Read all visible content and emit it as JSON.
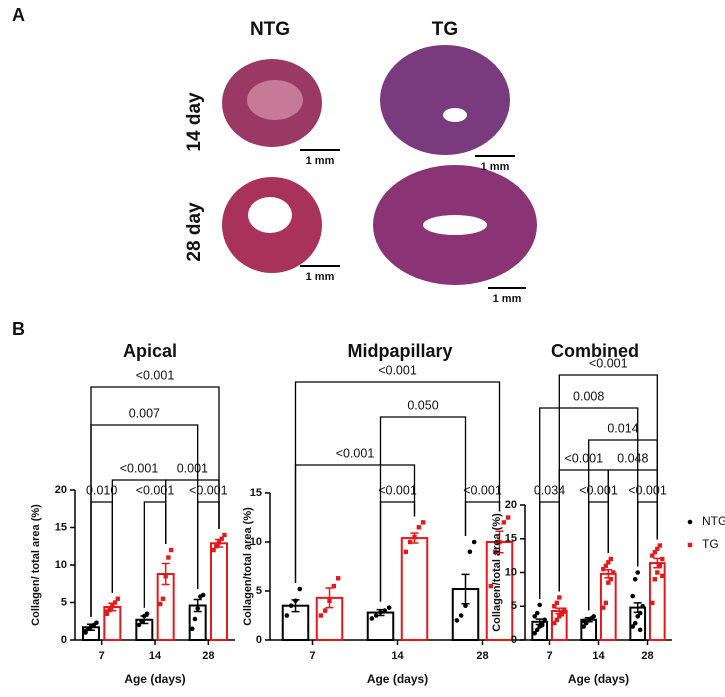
{
  "panel_labels": [
    "A",
    "B"
  ],
  "histology": {
    "columns": [
      "NTG",
      "TG"
    ],
    "rows": [
      "14 day",
      "28 day"
    ],
    "scale_bar": "1 mm"
  },
  "chart_data": [
    {
      "type": "bar",
      "title": "Apical",
      "xlabel": "Age (days)",
      "ylabel": "Collagen/ total area (%)",
      "categories": [
        "7",
        "14",
        "28"
      ],
      "ylim": [
        0,
        20
      ],
      "yticks": [
        0,
        5,
        10,
        15,
        20
      ],
      "series": [
        {
          "name": "NTG",
          "color": "#000000",
          "values": [
            1.7,
            2.7,
            4.6
          ],
          "errors": [
            0.4,
            0.5,
            0.8
          ],
          "points": [
            [
              1.0,
              1.5,
              1.8,
              2.0,
              2.3,
              1.2
            ],
            [
              2.0,
              2.5,
              3.2,
              3.5
            ],
            [
              1.5,
              2.8,
              4.2,
              5.8,
              6.0
            ]
          ]
        },
        {
          "name": "TG",
          "color": "#e31a1c",
          "values": [
            4.4,
            8.8,
            12.9
          ],
          "errors": [
            0.5,
            1.4,
            0.5
          ],
          "points": [
            [
              3.5,
              4.0,
              4.5,
              5.0,
              5.5,
              3.8
            ],
            [
              4.8,
              5.5,
              8.5,
              11.0,
              12.0
            ],
            [
              12.0,
              12.5,
              13.0,
              13.5,
              14.0
            ]
          ]
        }
      ],
      "comparisons": [
        "<0.001",
        "0.007",
        "<0.001",
        "0.001",
        "0.010",
        "<0.001",
        "<0.001"
      ]
    },
    {
      "type": "bar",
      "title": "Midpapillary",
      "xlabel": "Age (days)",
      "ylabel": "Collagen/total area (%)",
      "categories": [
        "7",
        "14",
        "28"
      ],
      "ylim": [
        0,
        15
      ],
      "yticks": [
        0,
        5,
        10,
        15
      ],
      "series": [
        {
          "name": "NTG",
          "color": "#000000",
          "values": [
            3.5,
            2.8,
            5.2
          ],
          "errors": [
            0.6,
            0.3,
            1.5
          ],
          "points": [
            [
              2.5,
              3.5,
              4.0,
              5.2
            ],
            [
              2.2,
              2.5,
              2.8,
              3.0,
              3.3
            ],
            [
              2.0,
              2.5,
              3.5,
              9.0,
              10.0
            ]
          ]
        },
        {
          "name": "TG",
          "color": "#e31a1c",
          "values": [
            4.3,
            10.4,
            10.0
          ],
          "errors": [
            1.0,
            0.5,
            1.1
          ],
          "points": [
            [
              2.5,
              3.0,
              4.0,
              5.5,
              6.3
            ],
            [
              9.0,
              10.0,
              10.5,
              11.5,
              12.0
            ],
            [
              5.5,
              9.0,
              10.0,
              12.0,
              12.5
            ]
          ]
        }
      ],
      "comparisons": [
        "<0.001",
        "0.050",
        "<0.001",
        "<0.001",
        "<0.001"
      ]
    },
    {
      "type": "bar",
      "title": "Combined",
      "xlabel": "Age (days)",
      "ylabel": "Collagen/total area (%)",
      "categories": [
        "7",
        "14",
        "28"
      ],
      "ylim": [
        0,
        20
      ],
      "yticks": [
        0,
        5,
        10,
        15,
        20
      ],
      "legend": "right",
      "series": [
        {
          "name": "NTG",
          "color": "#000000",
          "values": [
            2.7,
            3.0,
            4.8
          ],
          "errors": [
            0.4,
            0.3,
            0.7
          ],
          "points": [
            [
              1.0,
              1.5,
              2.0,
              2.5,
              3.0,
              3.5,
              4.0,
              5.2,
              2.2
            ],
            [
              2.0,
              2.5,
              3.0,
              3.2,
              3.5,
              2.8
            ],
            [
              2.0,
              2.5,
              3.5,
              4.0,
              5.0,
              6.5,
              9.0,
              10.0,
              1.5
            ]
          ]
        },
        {
          "name": "TG",
          "color": "#e31a1c",
          "values": [
            4.3,
            9.8,
            11.4
          ],
          "errors": [
            0.4,
            0.6,
            0.7
          ],
          "points": [
            [
              2.5,
              3.0,
              3.5,
              4.0,
              4.5,
              5.0,
              5.5,
              6.3,
              3.8,
              4.2
            ],
            [
              4.8,
              5.5,
              8.5,
              9.0,
              10.0,
              10.5,
              11.0,
              11.5,
              12.0
            ],
            [
              5.5,
              9.0,
              10.0,
              11.0,
              12.0,
              12.5,
              13.0,
              13.5,
              14.0,
              9.5
            ]
          ]
        }
      ],
      "comparisons": [
        "<0.001",
        "0.008",
        "0.014",
        "<0.001",
        "0.048",
        "0.034",
        "<0.001",
        "<0.001"
      ]
    }
  ]
}
